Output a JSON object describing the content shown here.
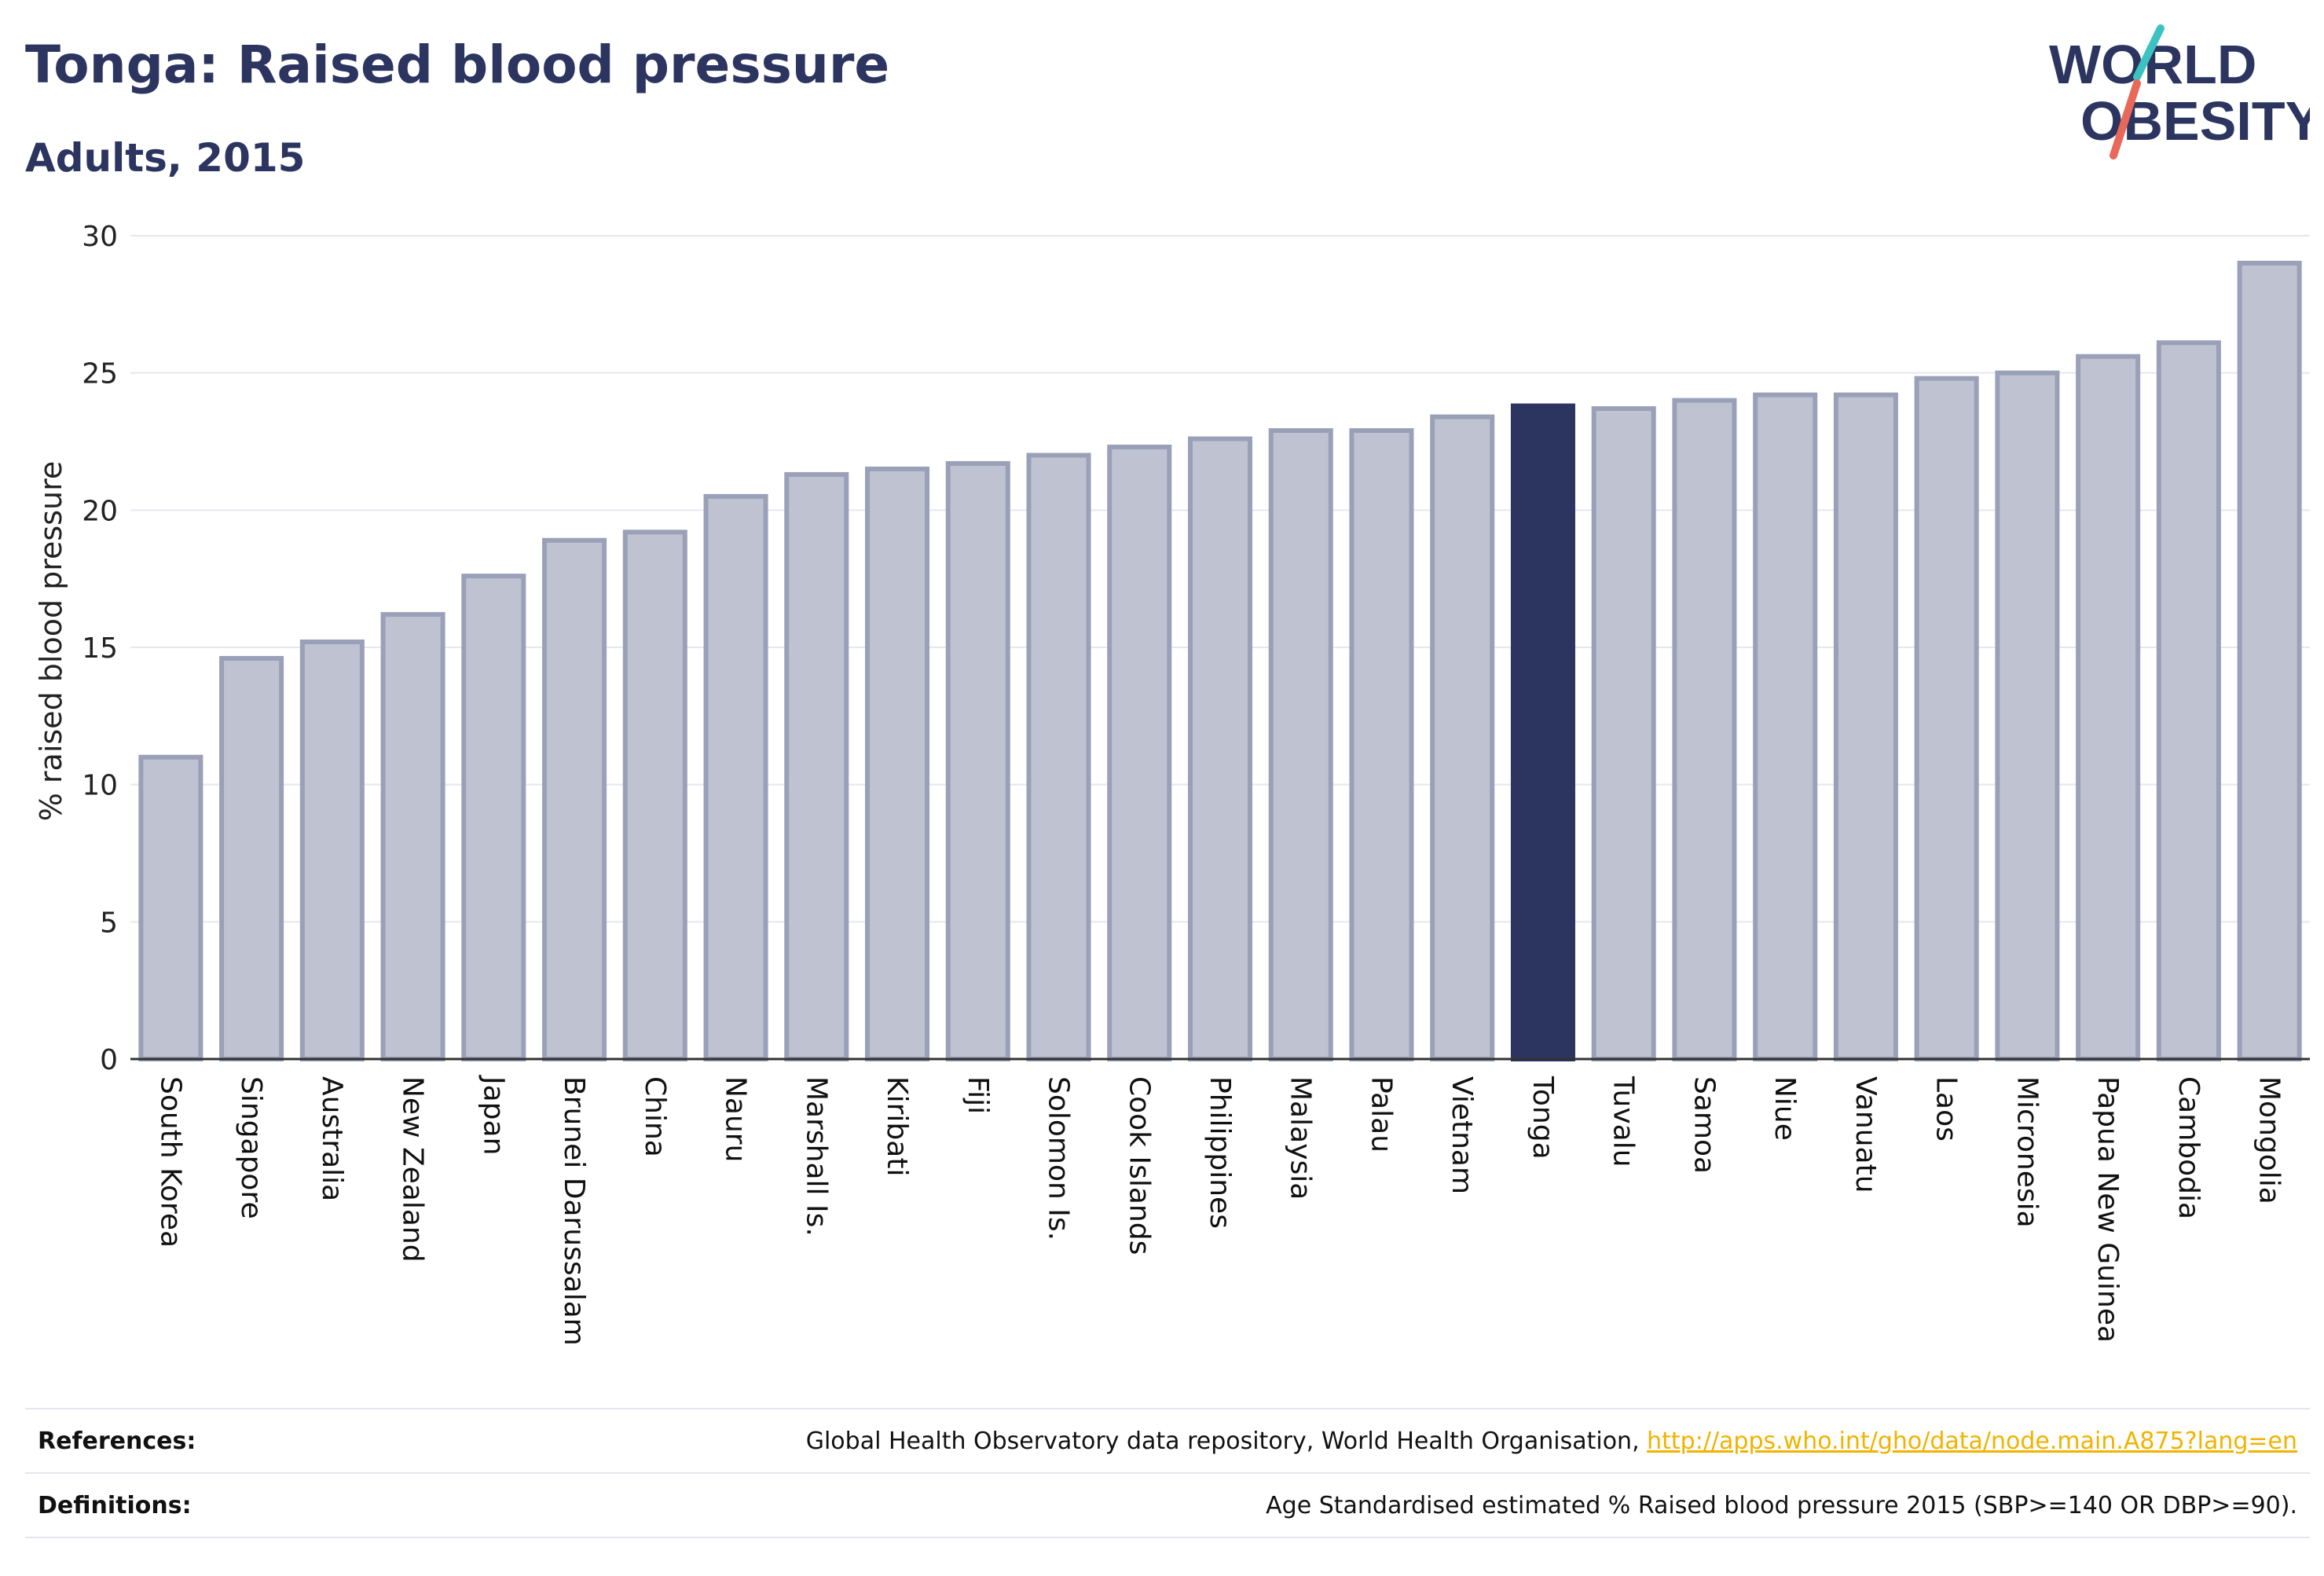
{
  "header": {
    "title": "Tonga: Raised blood pressure",
    "subtitle": "Adults, 2015"
  },
  "logo": {
    "line1": "WORLD",
    "line2": "OBESITY"
  },
  "colors": {
    "primary": "#2b3560",
    "bar_fill": "#bfc3d1",
    "bar_stroke": "#9aa0b8",
    "highlight": "#2b3560",
    "link": "#f2b200",
    "logo_teal": "#3cc3c1",
    "logo_red": "#e8685a"
  },
  "chart_data": {
    "type": "bar",
    "ylabel": "% raised blood pressure",
    "ylim": [
      0,
      30
    ],
    "yticks": [
      0,
      5,
      10,
      15,
      20,
      25,
      30
    ],
    "grid": true,
    "highlight": "Tonga",
    "categories": [
      "South Korea",
      "Singapore",
      "Australia",
      "New Zealand",
      "Japan",
      "Brunei Darussalam",
      "China",
      "Nauru",
      "Marshall Is.",
      "Kiribati",
      "Fiji",
      "Solomon Is.",
      "Cook Islands",
      "Philippines",
      "Malaysia",
      "Palau",
      "Vietnam",
      "Tonga",
      "Tuvalu",
      "Samoa",
      "Niue",
      "Vanuatu",
      "Laos",
      "Micronesia",
      "Papua New Guinea",
      "Cambodia",
      "Mongolia"
    ],
    "values": [
      11.0,
      14.6,
      15.2,
      16.2,
      17.6,
      18.9,
      19.2,
      20.5,
      21.3,
      21.5,
      21.7,
      22.0,
      22.3,
      22.6,
      22.9,
      22.9,
      23.4,
      23.8,
      23.7,
      24.0,
      24.2,
      24.2,
      24.8,
      25.0,
      25.6,
      26.1,
      29.0
    ]
  },
  "footer": {
    "references_label": "References:",
    "references_text": "Global Health Observatory data repository, World Health Organisation, ",
    "references_link": "http://apps.who.int/gho/data/node.main.A875?lang=en",
    "definitions_label": "Definitions:",
    "definitions_text": "Age Standardised estimated % Raised blood pressure 2015 (SBP>=140 OR DBP>=90)."
  }
}
